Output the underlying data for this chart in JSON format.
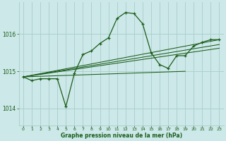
{
  "background_color": "#cce8e8",
  "grid_color": "#aacccc",
  "line_color": "#1a5c1a",
  "text_color": "#1a5c1a",
  "xlabel": "Graphe pression niveau de la mer (hPa)",
  "xlim": [
    -0.5,
    23.5
  ],
  "ylim": [
    1013.55,
    1016.85
  ],
  "yticks": [
    1014,
    1015,
    1016
  ],
  "xticks": [
    0,
    1,
    2,
    3,
    4,
    5,
    6,
    7,
    8,
    9,
    10,
    11,
    12,
    13,
    14,
    15,
    16,
    17,
    18,
    19,
    20,
    21,
    22,
    23
  ],
  "series1_x": [
    0,
    1,
    2,
    3,
    4,
    5,
    6,
    7,
    8,
    9,
    10,
    11,
    12,
    13,
    14,
    15,
    16,
    17,
    18,
    19,
    20,
    21,
    22,
    23
  ],
  "series1_y": [
    1014.85,
    1014.75,
    1014.8,
    1014.8,
    1014.8,
    1014.05,
    1014.95,
    1015.45,
    1015.55,
    1015.75,
    1015.9,
    1016.42,
    1016.58,
    1016.55,
    1016.28,
    1015.5,
    1015.18,
    1015.08,
    1015.42,
    1015.42,
    1015.68,
    1015.78,
    1015.85,
    1015.85
  ],
  "trend1_x": [
    0,
    23
  ],
  "trend1_y": [
    1014.85,
    1015.85
  ],
  "trend2_x": [
    0,
    23
  ],
  "trend2_y": [
    1014.85,
    1015.72
  ],
  "trend3_x": [
    0,
    23
  ],
  "trend3_y": [
    1014.85,
    1015.62
  ],
  "trend4_x": [
    0,
    19
  ],
  "trend4_y": [
    1014.85,
    1015.0
  ]
}
